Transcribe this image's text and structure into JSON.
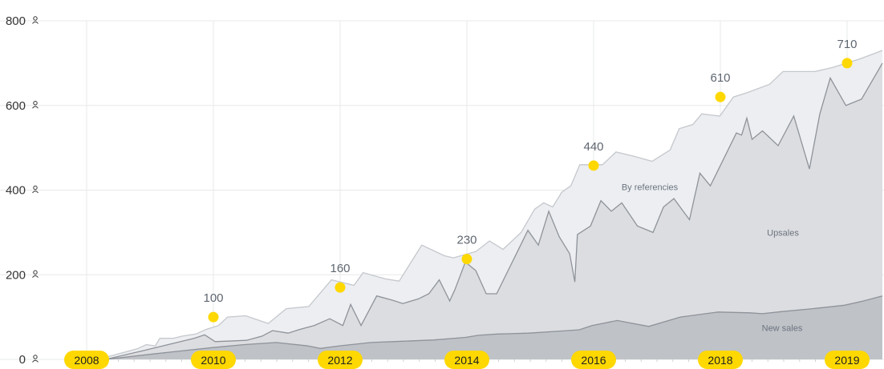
{
  "chart_data": {
    "type": "area",
    "stacked": true,
    "y_ticks": [
      "0",
      "200",
      "400",
      "600",
      "800"
    ],
    "ylim": [
      0,
      800
    ],
    "y_tick_icon": "person-icon",
    "xlim": [
      2008,
      2020.3
    ],
    "x_tick_labels": [
      {
        "year": 2008,
        "label": "2008"
      },
      {
        "year": 2010,
        "label": "2010"
      },
      {
        "year": 2012,
        "label": "2012"
      },
      {
        "year": 2014,
        "label": "2014"
      },
      {
        "year": 2016,
        "label": "2016"
      },
      {
        "year": 2018,
        "label": "2018"
      },
      {
        "year": 2020,
        "label": "2019"
      }
    ],
    "grid": true,
    "series": [
      {
        "name": "New sales",
        "color": "#bfc2c7",
        "stroke": "#8e939a",
        "label_pos": [
          2018.7,
          75
        ],
        "points": [
          [
            2008.3,
            0
          ],
          [
            2009,
            12
          ],
          [
            2009.5,
            20
          ],
          [
            2010,
            28
          ],
          [
            2010.5,
            35
          ],
          [
            2011,
            40
          ],
          [
            2011.5,
            32
          ],
          [
            2011.7,
            26
          ],
          [
            2012,
            32
          ],
          [
            2012.5,
            40
          ],
          [
            2013,
            43
          ],
          [
            2013.5,
            46
          ],
          [
            2014,
            52
          ],
          [
            2014.2,
            57
          ],
          [
            2014.5,
            60
          ],
          [
            2015,
            62
          ],
          [
            2015.5,
            67
          ],
          [
            2015.8,
            70
          ],
          [
            2016,
            80
          ],
          [
            2016.4,
            92
          ],
          [
            2016.9,
            78
          ],
          [
            2017.4,
            100
          ],
          [
            2018,
            112
          ],
          [
            2018.5,
            110
          ],
          [
            2018.7,
            108
          ],
          [
            2019,
            113
          ],
          [
            2019.5,
            120
          ],
          [
            2020,
            128
          ],
          [
            2020.3,
            138
          ],
          [
            2020.6,
            150
          ]
        ],
        "top": [
          [
            2008.3,
            0
          ],
          [
            2009,
            12
          ],
          [
            2009.5,
            20
          ],
          [
            2010,
            28
          ],
          [
            2010.5,
            35
          ],
          [
            2011,
            40
          ],
          [
            2011.5,
            32
          ],
          [
            2011.7,
            26
          ],
          [
            2012,
            32
          ],
          [
            2012.5,
            40
          ],
          [
            2013,
            43
          ],
          [
            2013.5,
            46
          ],
          [
            2014,
            52
          ],
          [
            2014.2,
            57
          ],
          [
            2014.5,
            60
          ],
          [
            2015,
            62
          ],
          [
            2015.5,
            67
          ],
          [
            2015.8,
            70
          ],
          [
            2016,
            80
          ],
          [
            2016.4,
            92
          ],
          [
            2016.9,
            78
          ],
          [
            2017.4,
            100
          ],
          [
            2018,
            112
          ],
          [
            2018.5,
            110
          ],
          [
            2018.7,
            108
          ],
          [
            2019,
            113
          ],
          [
            2019.5,
            120
          ],
          [
            2020,
            128
          ],
          [
            2020.3,
            138
          ],
          [
            2020.6,
            150
          ]
        ]
      },
      {
        "name": "Upsales",
        "color": "#dcdde0",
        "stroke": "#8e939a",
        "label_pos": [
          2018.7,
          300
        ],
        "top": [
          [
            2008.3,
            0
          ],
          [
            2009,
            20
          ],
          [
            2009.5,
            35
          ],
          [
            2010,
            50
          ],
          [
            2010.2,
            58
          ],
          [
            2010.4,
            42
          ],
          [
            2011,
            45
          ],
          [
            2011.3,
            55
          ],
          [
            2011.5,
            68
          ],
          [
            2011.8,
            62
          ],
          [
            2012,
            70
          ],
          [
            2012.3,
            80
          ],
          [
            2012.6,
            96
          ],
          [
            2012.85,
            80
          ],
          [
            2013,
            130
          ],
          [
            2013.2,
            80
          ],
          [
            2013.5,
            150
          ],
          [
            2013.8,
            140
          ],
          [
            2014,
            132
          ],
          [
            2014.3,
            143
          ],
          [
            2014.5,
            155
          ],
          [
            2014.7,
            188
          ],
          [
            2014.9,
            138
          ],
          [
            2015,
            165
          ],
          [
            2015.2,
            230
          ],
          [
            2015.4,
            210
          ],
          [
            2015.6,
            155
          ],
          [
            2015.8,
            155
          ],
          [
            2016,
            205
          ],
          [
            2016.2,
            255
          ],
          [
            2016.4,
            305
          ],
          [
            2016.6,
            270
          ],
          [
            2016.8,
            350
          ],
          [
            2017,
            290
          ],
          [
            2017.2,
            250
          ],
          [
            2017.3,
            183
          ],
          [
            2017.35,
            295
          ],
          [
            2017.6,
            315
          ],
          [
            2017.8,
            375
          ],
          [
            2018,
            350
          ],
          [
            2018.2,
            370
          ],
          [
            2018.5,
            315
          ],
          [
            2018.8,
            300
          ],
          [
            2019,
            360
          ],
          [
            2019.2,
            380
          ],
          [
            2019.5,
            330
          ],
          [
            2019.7,
            440
          ],
          [
            2019.9,
            410
          ],
          [
            2020.1,
            460
          ],
          [
            2020.4,
            535
          ],
          [
            2020.5,
            530
          ],
          [
            2020.6,
            570
          ],
          [
            2020.7,
            520
          ],
          [
            2020.9,
            540
          ],
          [
            2021.2,
            505
          ],
          [
            2021.5,
            575
          ],
          [
            2021.8,
            450
          ],
          [
            2022,
            580
          ],
          [
            2022.2,
            665
          ],
          [
            2022.5,
            600
          ],
          [
            2022.8,
            615
          ],
          [
            2023.2,
            700
          ]
        ],
        "points": []
      },
      {
        "name": "By referencies",
        "color": "#eceef1",
        "stroke": "#c4c7cc",
        "label_pos": [
          2017.8,
          408
        ],
        "top": [
          [
            2008.3,
            5
          ],
          [
            2009,
            25
          ],
          [
            2009.2,
            35
          ],
          [
            2009.4,
            32
          ],
          [
            2009.5,
            50
          ],
          [
            2009.8,
            50
          ],
          [
            2010,
            55
          ],
          [
            2010.3,
            60
          ],
          [
            2010.5,
            70
          ],
          [
            2010.8,
            80
          ],
          [
            2011,
            100
          ],
          [
            2011.4,
            103
          ],
          [
            2011.9,
            85
          ],
          [
            2012.3,
            120
          ],
          [
            2012.8,
            125
          ],
          [
            2013.3,
            188
          ],
          [
            2013.8,
            175
          ],
          [
            2014,
            205
          ],
          [
            2014.5,
            190
          ],
          [
            2014.8,
            185
          ],
          [
            2015.3,
            270
          ],
          [
            2015.8,
            245
          ],
          [
            2016,
            240
          ],
          [
            2016.5,
            255
          ],
          [
            2016.8,
            280
          ],
          [
            2017.1,
            260
          ],
          [
            2017.5,
            300
          ],
          [
            2017.8,
            355
          ],
          [
            2018,
            370
          ],
          [
            2018.2,
            360
          ],
          [
            2018.4,
            395
          ],
          [
            2018.6,
            410
          ],
          [
            2018.8,
            460
          ],
          [
            2019.3,
            460
          ],
          [
            2019.6,
            490
          ],
          [
            2020,
            480
          ],
          [
            2020.4,
            468
          ],
          [
            2020.8,
            495
          ],
          [
            2021,
            545
          ],
          [
            2021.3,
            555
          ],
          [
            2021.5,
            580
          ],
          [
            2021.9,
            575
          ],
          [
            2022.2,
            620
          ],
          [
            2022.5,
            630
          ],
          [
            2023,
            650
          ],
          [
            2023.3,
            680
          ],
          [
            2024,
            680
          ],
          [
            2024.4,
            690
          ],
          [
            2025,
            710
          ],
          [
            2025.5,
            730
          ]
        ],
        "points": []
      }
    ],
    "annotations": [
      {
        "x": 2010,
        "y": 100,
        "label": "100"
      },
      {
        "x": 2012,
        "y": 170,
        "label": "160"
      },
      {
        "x": 2014,
        "y": 237,
        "label": "230"
      },
      {
        "x": 2016,
        "y": 458,
        "label": "440"
      },
      {
        "x": 2018,
        "y": 620,
        "label": "610"
      },
      {
        "x": 2020,
        "y": 700,
        "label": "710"
      }
    ],
    "colors": {
      "marker": "#ffd800",
      "pill": "#ffd800",
      "grid": "#e7e8ea"
    }
  }
}
